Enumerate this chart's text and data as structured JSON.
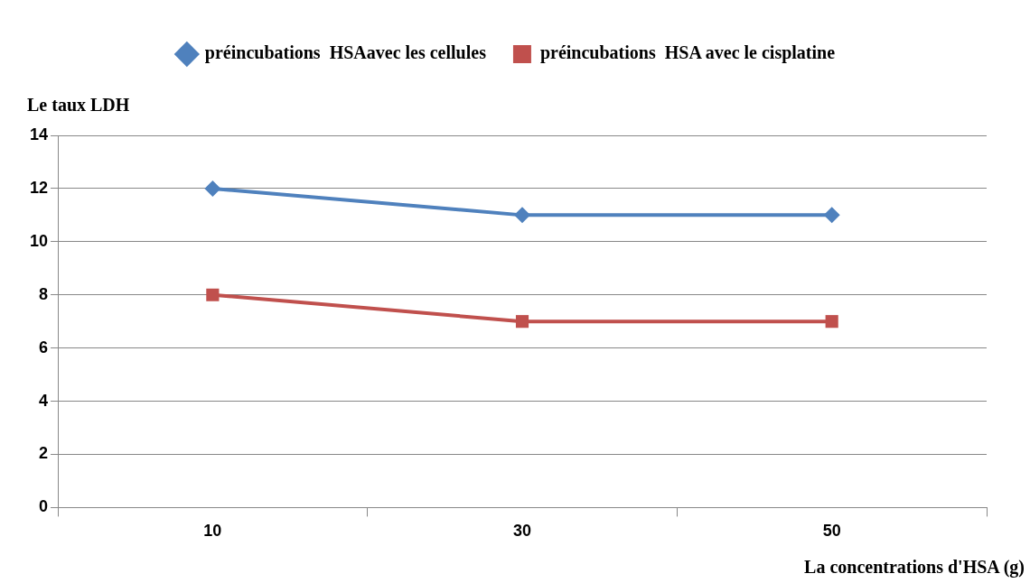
{
  "chart_data": {
    "type": "line",
    "xlabel": "La concentrations d'HSA (g)",
    "ylabel": "Le taux LDH",
    "categories": [
      "10",
      "30",
      "50"
    ],
    "series": [
      {
        "name": "préincubations  HSAavec les cellules",
        "color": "#4f81bd",
        "values": [
          12,
          11,
          11
        ],
        "marker": "diamond"
      },
      {
        "name": "préincubations  HSA avec le cisplatine",
        "color": "#c0504d",
        "values": [
          8,
          7,
          7
        ],
        "marker": "square"
      }
    ],
    "ylim": [
      0,
      14
    ],
    "yticks": [
      0,
      2,
      4,
      6,
      8,
      10,
      12,
      14
    ],
    "grid": "y",
    "legend": "top",
    "line_style": "solid"
  }
}
